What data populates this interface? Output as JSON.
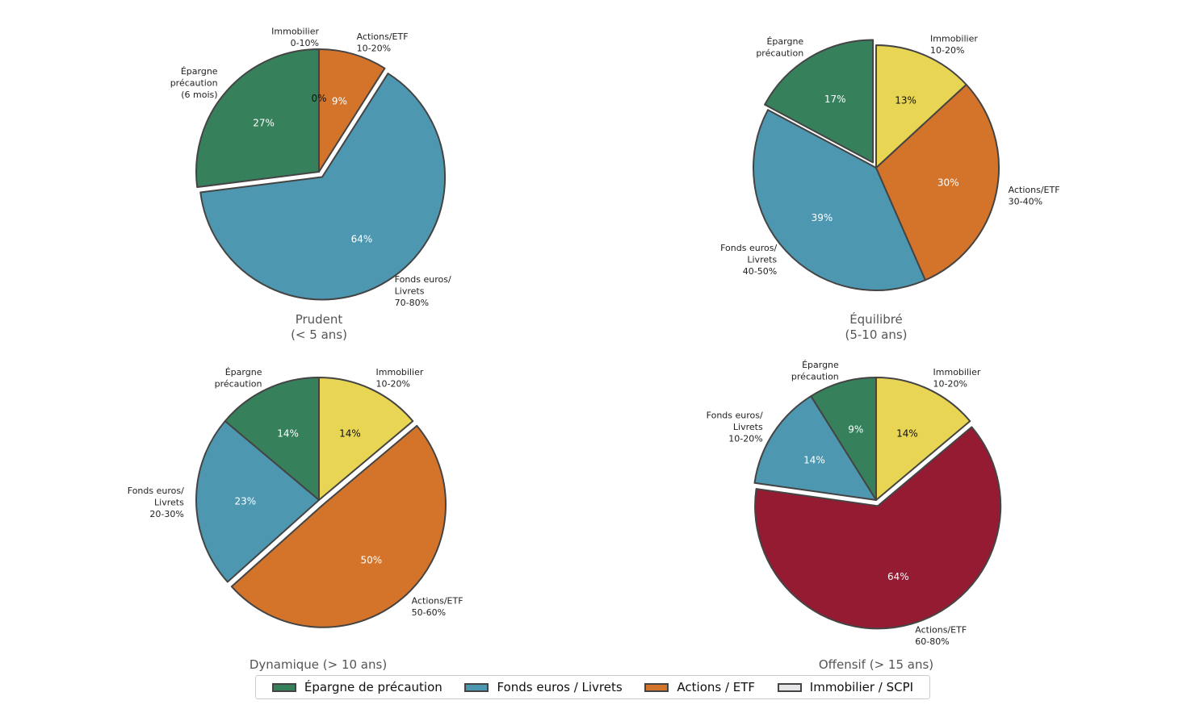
{
  "chart_data": [
    {
      "type": "pie",
      "title": "Prudent\n(< 5 ans)",
      "values": [
        27,
        64,
        9,
        0
      ],
      "pct_labels": [
        "27%",
        "64%",
        "9%",
        "0%"
      ],
      "slice_labels": [
        "Épargne\nprécaution\n(6 mois)",
        "Fonds euros/\nLivrets\n70-80%",
        "Actions/ETF\n10-20%",
        "Immobilier\n0-10%"
      ],
      "colors": [
        "#37805c",
        "#4e97b1",
        "#d4742b",
        "#e8d553"
      ],
      "exploded_index": 1
    },
    {
      "type": "pie",
      "title": "Équilibré\n(5-10 ans)",
      "values": [
        17,
        39,
        30,
        13
      ],
      "pct_labels": [
        "17%",
        "39%",
        "30%",
        "13%"
      ],
      "slice_labels": [
        "Épargne\nprécaution",
        "Fonds euros/\nLivrets\n40-50%",
        "Actions/ETF\n30-40%",
        "Immobilier\n10-20%"
      ],
      "colors": [
        "#37805c",
        "#4e97b1",
        "#d4742b",
        "#e8d553"
      ],
      "exploded_index": 0
    },
    {
      "type": "pie",
      "title": "Dynamique (> 10 ans)",
      "values": [
        14,
        23,
        50,
        14
      ],
      "pct_labels": [
        "14%",
        "23%",
        "50%",
        "14%"
      ],
      "slice_labels": [
        "Épargne\nprécaution",
        "Fonds euros/\nLivrets\n20-30%",
        "Actions/ETF\n50-60%",
        "Immobilier\n10-20%"
      ],
      "colors": [
        "#37805c",
        "#4e97b1",
        "#d4742b",
        "#e8d553"
      ],
      "exploded_index": 2
    },
    {
      "type": "pie",
      "title": "Offensif (> 15 ans)",
      "values": [
        9,
        14,
        64,
        14
      ],
      "pct_labels": [
        "9%",
        "14%",
        "64%",
        "14%"
      ],
      "slice_labels": [
        "Épargne\nprécaution",
        "Fonds euros/\nLivrets\n10-20%",
        "Actions/ETF\n60-80%",
        "Immobilier\n10-20%"
      ],
      "colors": [
        "#37805c",
        "#4e97b1",
        "#951b33",
        "#e8d553"
      ],
      "exploded_index": 2
    }
  ],
  "legend": {
    "position": "bottom-center",
    "items": [
      {
        "label": "Épargne de précaution",
        "color": "#37805c"
      },
      {
        "label": "Fonds euros / Livrets",
        "color": "#4e97b1"
      },
      {
        "label": "Actions / ETF",
        "color": "#d4742b"
      },
      {
        "label": "Immobilier / SCPI",
        "color": "#e6e6e9"
      }
    ]
  }
}
